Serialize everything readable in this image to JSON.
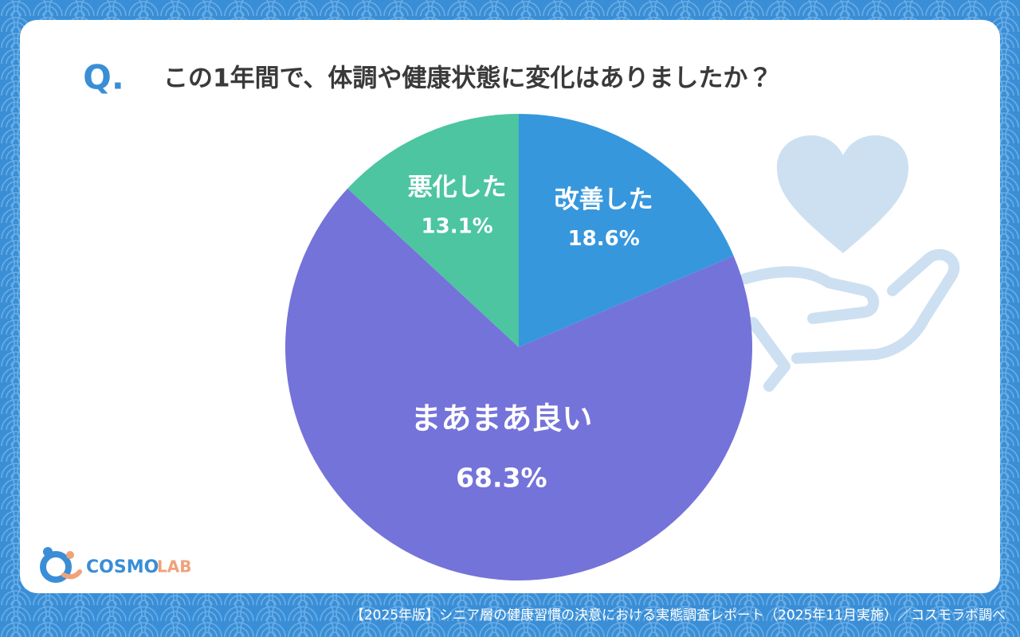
{
  "header": {
    "q": "Q."
  },
  "chart_data": {
    "type": "pie",
    "title": "この1年間で、体調や健康状態に変化はありましたか？",
    "categories": [
      "改善した",
      "まあまあ良い",
      "悪化した"
    ],
    "values": [
      18.6,
      68.3,
      13.1
    ],
    "value_labels": [
      "18.6%",
      "68.3%",
      "13.1%"
    ],
    "colors": [
      "#3797dd",
      "#7473d9",
      "#4cc5a0"
    ]
  },
  "logo": {
    "main": "COSMO",
    "sub": "LAB"
  },
  "footer": "【2025年版】シニア層の健康習慣の決意における実態調査レポート（2025年11月実施）／コスモラボ調べ"
}
